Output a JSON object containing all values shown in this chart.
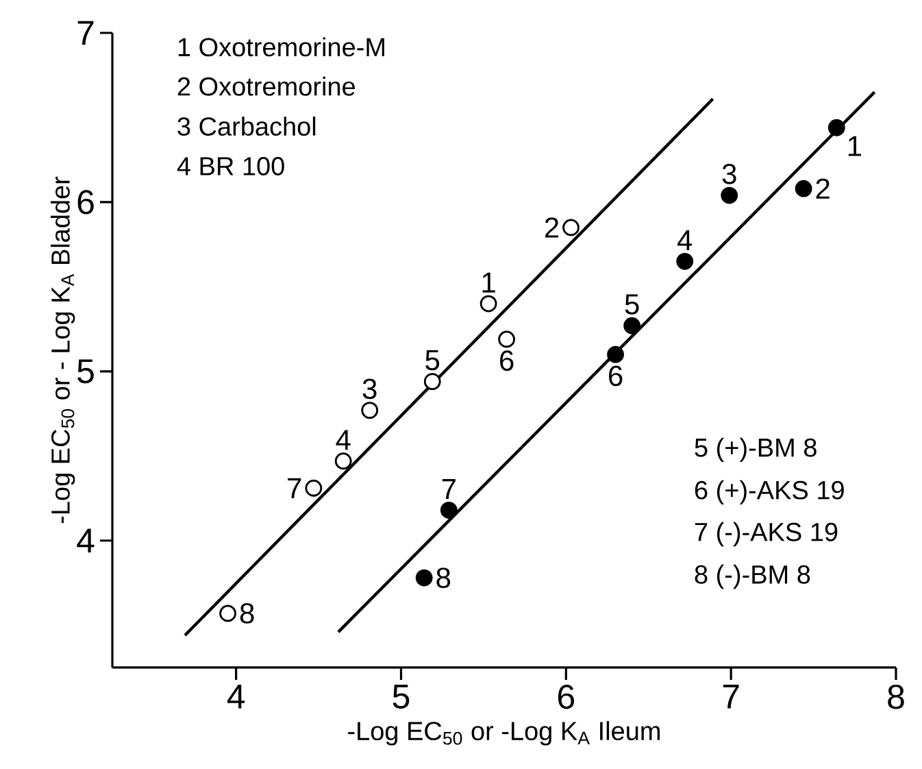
{
  "chart_data": {
    "type": "scatter",
    "xlabel": "-Log EC$_{50}$ or -Log K$_{A}$ Ileum",
    "ylabel": "-Log EC$_{50}$ or - Log K$_{A}$ Bladder",
    "xlim": [
      3.25,
      8
    ],
    "ylim": [
      3.25,
      7
    ],
    "xticks": [
      4,
      5,
      6,
      7,
      8
    ],
    "yticks": [
      4,
      5,
      6,
      7
    ],
    "grid": false,
    "marker": "circle",
    "series": [
      {
        "color": "#ffffff",
        "x": [
          3.95,
          4.47,
          4.65,
          4.81,
          5.19,
          5.53,
          5.64,
          6.03
        ],
        "values": [
          3.57,
          4.31,
          4.47,
          4.77,
          4.94,
          5.4,
          5.19,
          5.85
        ]
      },
      {
        "color": "#000000",
        "x": [
          5.14,
          5.29,
          6.3,
          6.4,
          6.72,
          6.99,
          7.44,
          7.64
        ],
        "values": [
          3.78,
          4.18,
          5.1,
          5.27,
          5.65,
          6.04,
          6.08,
          6.44
        ]
      },
      {
        "type": "line",
        "color": "#000000",
        "marker": "none",
        "x": [
          3.69,
          6.89
        ],
        "values": [
          3.44,
          6.61
        ]
      },
      {
        "type": "line",
        "color": "#000000",
        "marker": "none",
        "x": [
          4.62,
          7.87
        ],
        "values": [
          3.46,
          6.65
        ]
      }
    ],
    "annotations": [
      "1 Oxotremorine-M",
      "2 Oxotremorine",
      "3 Carbachol",
      "4 BR 100",
      "5 (+)-BM 8",
      "6 (+)-AKS 19",
      "7 (-)-AKS 19",
      "8 (-)-BM 8",
      {
        "text": "8",
        "x": 3.95,
        "y": 3.57
      },
      {
        "text": "7",
        "x": 4.47,
        "y": 4.31
      },
      {
        "text": "4",
        "x": 4.65,
        "y": 4.47
      },
      {
        "text": "3",
        "x": 4.81,
        "y": 4.77
      },
      {
        "text": "5",
        "x": 5.19,
        "y": 4.94
      },
      {
        "text": "1",
        "x": 5.53,
        "y": 5.4
      },
      {
        "text": "6",
        "x": 5.64,
        "y": 5.19
      },
      {
        "text": "2",
        "x": 6.03,
        "y": 5.85
      },
      {
        "text": "8",
        "x": 5.14,
        "y": 3.78
      },
      {
        "text": "7",
        "x": 5.29,
        "y": 4.18
      },
      {
        "text": "6",
        "x": 6.3,
        "y": 5.1
      },
      {
        "text": "5",
        "x": 6.4,
        "y": 5.27
      },
      {
        "text": "4",
        "x": 6.72,
        "y": 5.65
      },
      {
        "text": "3",
        "x": 6.99,
        "y": 6.04
      },
      {
        "text": "2",
        "x": 7.44,
        "y": 6.08
      },
      {
        "text": "1",
        "x": 7.64,
        "y": 6.44
      }
    ]
  }
}
